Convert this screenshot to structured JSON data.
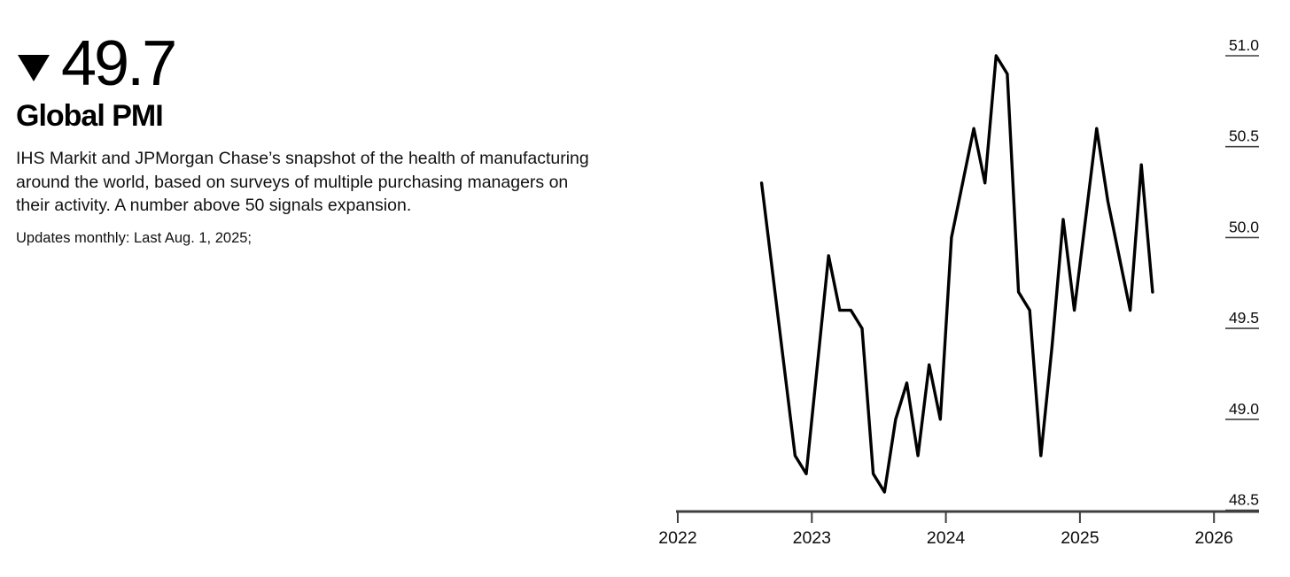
{
  "headline": {
    "direction_icon": "down-triangle",
    "value": "49.7",
    "title": "Global PMI",
    "description": "IHS Markit and JPMorgan Chase’s snapshot of the health of manufacturing around the world, based on surveys of multiple purchasing managers on their activity. A number above 50 signals expansion.",
    "update_note": "Updates monthly: Last Aug. 1, 2025;"
  },
  "colors": {
    "line": "#000000",
    "axis": "#3f3f3f",
    "text": "#0c0c0c",
    "background": "#ffffff"
  },
  "chart_data": {
    "type": "line",
    "title": "Global PMI",
    "x": [
      "2022-08",
      "2022-09",
      "2022-10",
      "2022-11",
      "2022-12",
      "2023-01",
      "2023-02",
      "2023-03",
      "2023-04",
      "2023-05",
      "2023-06",
      "2023-07",
      "2023-08",
      "2023-09",
      "2023-10",
      "2023-11",
      "2023-12",
      "2024-01",
      "2024-02",
      "2024-03",
      "2024-04",
      "2024-05",
      "2024-06",
      "2024-07",
      "2024-08",
      "2024-09",
      "2024-10",
      "2024-11",
      "2024-12",
      "2025-01",
      "2025-02",
      "2025-03",
      "2025-04",
      "2025-05",
      "2025-06",
      "2025-07"
    ],
    "values": [
      50.3,
      49.8,
      49.3,
      48.8,
      48.7,
      49.3,
      49.9,
      49.6,
      49.6,
      49.5,
      48.7,
      48.6,
      49.0,
      49.2,
      48.8,
      49.3,
      49.0,
      50.0,
      50.3,
      50.6,
      50.3,
      51.0,
      50.9,
      49.7,
      49.6,
      48.8,
      49.4,
      50.1,
      49.6,
      50.1,
      50.6,
      50.2,
      49.9,
      49.6,
      50.4,
      49.7
    ],
    "x_axis_ticks": [
      "2022",
      "2023",
      "2024",
      "2025",
      "2026"
    ],
    "y_axis_ticks": [
      51.0,
      50.5,
      50.0,
      49.5,
      49.0,
      48.5
    ],
    "ylim": [
      48.5,
      51.0
    ],
    "xlim_years": [
      2022,
      2026
    ],
    "grid": "off",
    "legend": "none",
    "y_axis_side": "right"
  }
}
